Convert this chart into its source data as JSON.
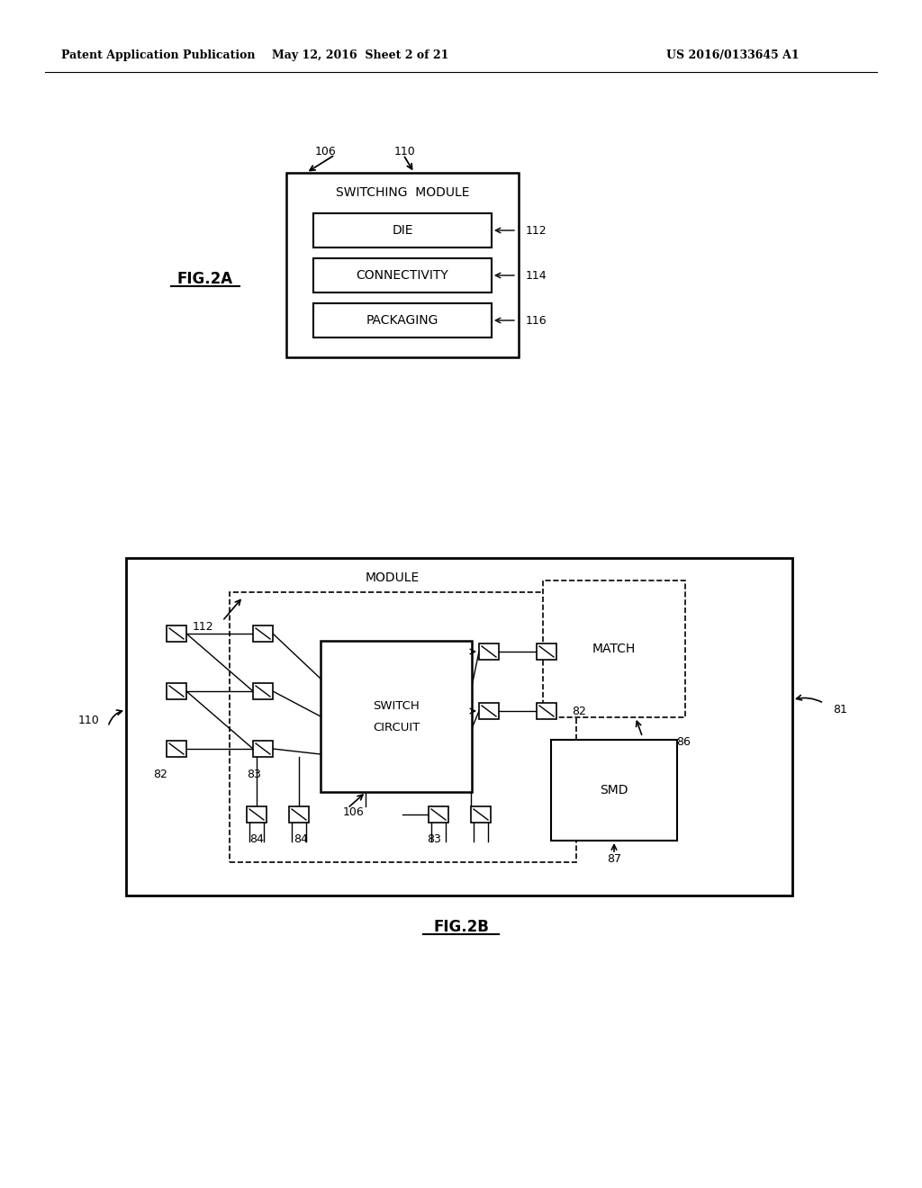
{
  "bg_color": "#ffffff",
  "header_left": "Patent Application Publication",
  "header_center": "May 12, 2016  Sheet 2 of 21",
  "header_right": "US 2016/0133645 A1"
}
